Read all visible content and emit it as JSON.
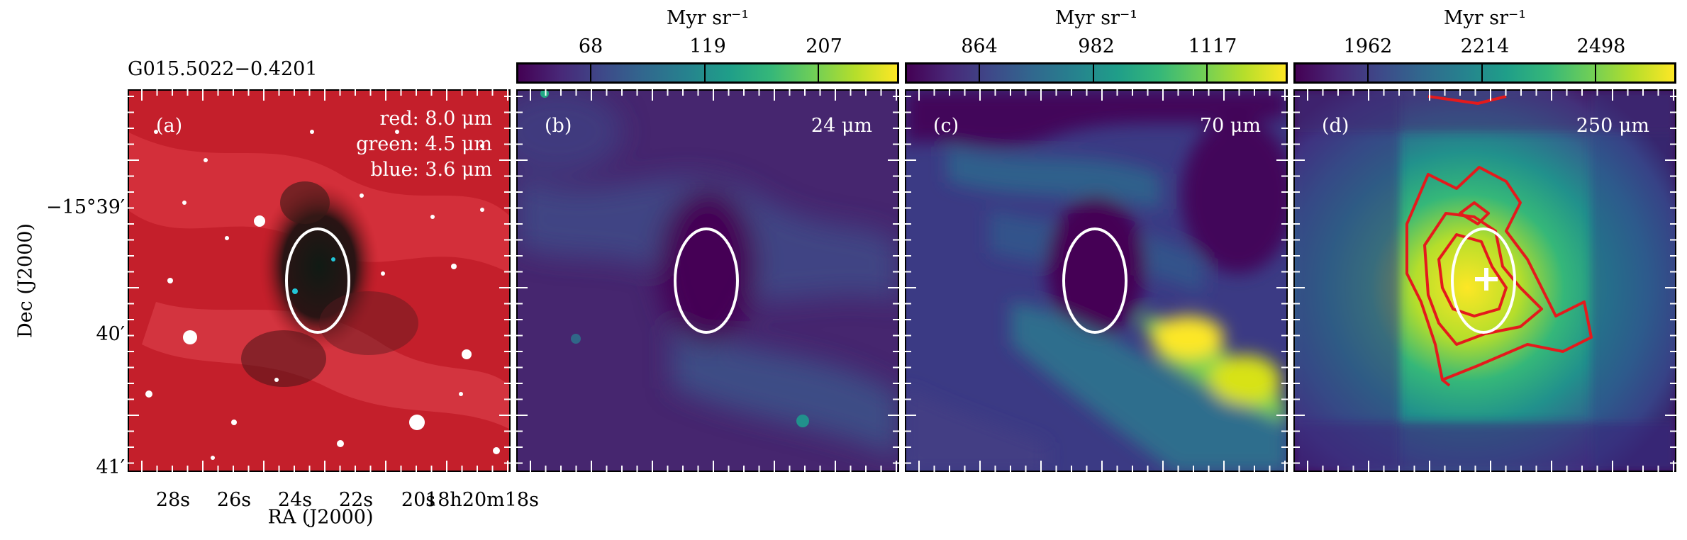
{
  "figure": {
    "source_name": "G015.5022−0.4201",
    "xlabel": "RA (J2000)",
    "ylabel": "Dec (J2000)",
    "ra_ticks": [
      "28s",
      "26s",
      "24s",
      "22s",
      "20s",
      "18h20m18s"
    ],
    "dec_ticks": [
      "−15°39′",
      "40′",
      "41′"
    ]
  },
  "panels": [
    {
      "label": "(a)",
      "legend": [
        "red: 8.0 μm",
        "green: 4.5 μm",
        "blue: 3.6 μm"
      ]
    },
    {
      "label": "(b)",
      "band": "24 μm",
      "colorbar": {
        "unit": "Myr sr⁻¹",
        "ticks": [
          "68",
          "119",
          "207"
        ]
      }
    },
    {
      "label": "(c)",
      "band": "70 μm",
      "colorbar": {
        "unit": "Myr sr⁻¹",
        "ticks": [
          "864",
          "982",
          "1117"
        ]
      }
    },
    {
      "label": "(d)",
      "band": "250 μm",
      "colorbar": {
        "unit": "Myr sr⁻¹",
        "ticks": [
          "1962",
          "2214",
          "2498"
        ]
      }
    }
  ],
  "colors": {
    "ellipse": "#ffffff",
    "contour": "#e41a1c",
    "viridis_low": "#440154",
    "viridis_high": "#fde725"
  }
}
